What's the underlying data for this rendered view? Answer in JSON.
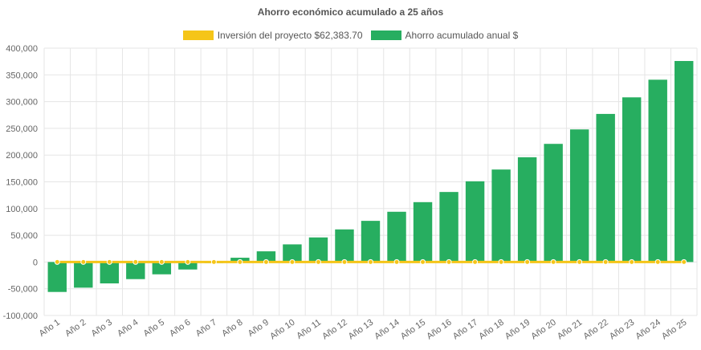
{
  "chart_data": {
    "type": "bar",
    "title": "Ahorro económico acumulado a 25 años",
    "categories": [
      "Año 1",
      "Año 2",
      "Año 3",
      "Año 4",
      "Año 5",
      "Año 6",
      "Año 7",
      "Año 8",
      "Año 9",
      "Año 10",
      "Año 11",
      "Año 12",
      "Año 13",
      "Año 14",
      "Año 15",
      "Año 16",
      "Año 17",
      "Año 18",
      "Año 19",
      "Año 20",
      "Año 21",
      "Año 22",
      "Año 23",
      "Año 24",
      "Año 25"
    ],
    "series": [
      {
        "name": "Inversión del proyecto $62,383.70",
        "type": "line",
        "color": "#f5c518",
        "values": [
          0,
          0,
          0,
          0,
          0,
          0,
          0,
          0,
          0,
          0,
          0,
          0,
          0,
          0,
          0,
          0,
          0,
          0,
          0,
          0,
          0,
          0,
          0,
          0,
          0
        ]
      },
      {
        "name": "Ahorro acumulado anual $",
        "type": "bar",
        "color": "#27ae60",
        "values": [
          -56000,
          -48000,
          -40000,
          -32000,
          -23000,
          -14000,
          -2000,
          8000,
          20000,
          33000,
          46000,
          61000,
          77000,
          94000,
          112000,
          131000,
          151000,
          173000,
          196000,
          221000,
          248000,
          277000,
          308000,
          341000,
          376000
        ]
      }
    ],
    "yticks": [
      "400,000",
      "350,000",
      "300,000",
      "250,000",
      "200,000",
      "150,000",
      "100,000",
      "50,000",
      "0",
      "-50,000",
      "-100,000"
    ],
    "ylim": [
      -100000,
      400000
    ],
    "grid": true,
    "legend_position": "top"
  }
}
